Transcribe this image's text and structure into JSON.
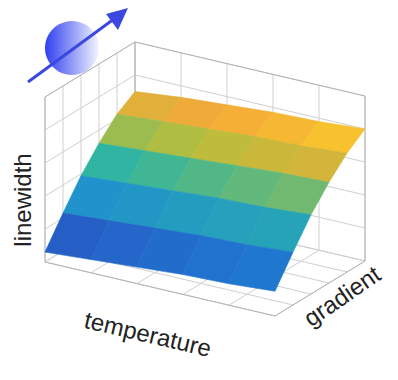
{
  "chart_data": {
    "type": "surface",
    "xlabel": "temperature",
    "ylabel": "gradient",
    "zlabel": "linewidth",
    "x": [
      0,
      2,
      4,
      6,
      8,
      10
    ],
    "y": [
      0,
      2,
      4,
      6,
      8,
      10
    ],
    "z": [
      [
        0.6,
        0.8,
        1.0,
        1.2,
        1.3,
        1.5
      ],
      [
        2.3,
        2.5,
        2.7,
        2.9,
        3.0,
        3.2
      ],
      [
        3.9,
        4.1,
        4.3,
        4.5,
        4.6,
        4.8
      ],
      [
        5.2,
        5.4,
        5.6,
        5.8,
        6.0,
        6.1
      ],
      [
        6.3,
        6.5,
        6.7,
        6.9,
        7.0,
        7.2
      ],
      [
        7.0,
        7.3,
        7.5,
        7.7,
        7.8,
        8.0
      ]
    ],
    "xlim": [
      0,
      10
    ],
    "ylim": [
      0,
      10
    ],
    "zlim": [
      0,
      10
    ],
    "xticks": [
      0,
      2,
      4,
      6,
      8,
      10
    ],
    "yticks": [
      0,
      2,
      4,
      6,
      8,
      10
    ],
    "zticks": [
      0,
      2,
      4,
      6,
      8,
      10
    ],
    "grid": true,
    "tick_labels": false
  }
}
